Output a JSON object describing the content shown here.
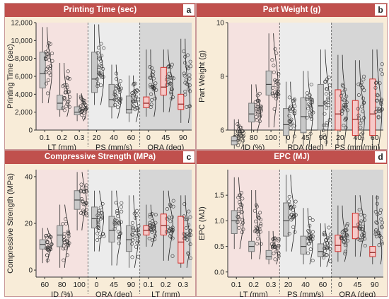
{
  "chart_data": [
    {
      "type": "box",
      "letter": "a",
      "title": "Printing Time (sec)",
      "ylabel": "Printing Time (sec)",
      "ylim": [
        0,
        12000
      ],
      "yticks": [
        0,
        2000,
        4000,
        6000,
        8000,
        10000,
        12000
      ],
      "ytick_labels": [
        "0",
        "2,000",
        "4,000",
        "6,000",
        "8,000",
        "10,000",
        "12,000"
      ],
      "groups": [
        {
          "xlabel": "LT (mm)",
          "shade": "#f5e2e0",
          "categories": [
            "0.1",
            "0.2",
            "0.3"
          ],
          "boxes": [
            {
              "q1": 4700,
              "median": 6300,
              "q3": 8700,
              "low": 3000,
              "high": 11500,
              "color": "gray"
            },
            {
              "q1": 2300,
              "median": 3000,
              "q3": 3900,
              "low": 1500,
              "high": 7500,
              "color": "gray"
            },
            {
              "q1": 1700,
              "median": 2000,
              "q3": 2600,
              "low": 1000,
              "high": 4100,
              "color": "gray"
            }
          ]
        },
        {
          "xlabel": "PS (mm/s)",
          "shade": "#ececec",
          "categories": [
            "20",
            "40",
            "60"
          ],
          "boxes": [
            {
              "q1": 4200,
              "median": 5700,
              "q3": 8700,
              "low": 2800,
              "high": 11800,
              "color": "gray"
            },
            {
              "q1": 2600,
              "median": 3400,
              "q3": 5100,
              "low": 1300,
              "high": 7300,
              "color": "gray"
            },
            {
              "q1": 1900,
              "median": 2300,
              "q3": 3800,
              "low": 900,
              "high": 6100,
              "color": "gray"
            }
          ]
        },
        {
          "xlabel": "ORA (deg)",
          "shade": "#d6d6d6",
          "categories": [
            "0",
            "45",
            "90"
          ],
          "boxes": [
            {
              "q1": 2500,
              "median": 3000,
              "q3": 3700,
              "low": 1500,
              "high": 9000,
              "color": "red"
            },
            {
              "q1": 3900,
              "median": 4800,
              "q3": 7000,
              "low": 2000,
              "high": 9000,
              "color": "red"
            },
            {
              "q1": 2300,
              "median": 2900,
              "q3": 4000,
              "low": 800,
              "high": 10200,
              "color": "red"
            }
          ]
        }
      ]
    },
    {
      "type": "box",
      "letter": "b",
      "title": "Part Weight (g)",
      "ylabel": "Part Weight (g)",
      "ylim": [
        6,
        10
      ],
      "yticks": [
        6,
        8,
        10
      ],
      "ytick_labels": [
        "6",
        "8",
        "10"
      ],
      "groups": [
        {
          "xlabel": "ID (%)",
          "shade": "#f5e2e0",
          "categories": [
            "60",
            "80",
            "100"
          ],
          "boxes": [
            {
              "q1": 5.45,
              "median": 5.6,
              "q3": 5.75,
              "low": 5.3,
              "high": 6.4,
              "color": "gray"
            },
            {
              "q1": 6.3,
              "median": 6.6,
              "q3": 7.0,
              "low": 5.9,
              "high": 7.7,
              "color": "gray"
            },
            {
              "q1": 7.3,
              "median": 7.7,
              "q3": 8.2,
              "low": 6.1,
              "high": 9.6,
              "color": "gray"
            }
          ]
        },
        {
          "xlabel": "RDA (deg)",
          "shade": "#ececec",
          "categories": [
            "0",
            "45",
            "90"
          ],
          "boxes": [
            {
              "q1": 5.8,
              "median": 6.2,
              "q3": 6.8,
              "low": 5.5,
              "high": 7.8,
              "color": "gray"
            },
            {
              "q1": 5.9,
              "median": 6.5,
              "q3": 7.2,
              "low": 5.4,
              "high": 8.2,
              "color": "gray"
            },
            {
              "q1": 6.0,
              "median": 6.9,
              "q3": 7.7,
              "low": 5.4,
              "high": 9.0,
              "color": "gray"
            }
          ]
        },
        {
          "xlabel": "PS (mm/min)",
          "shade": "#d6d6d6",
          "categories": [
            "20",
            "40",
            "60"
          ],
          "boxes": [
            {
              "q1": 6.0,
              "median": 6.6,
              "q3": 7.5,
              "low": 5.4,
              "high": 8.8,
              "color": "red"
            },
            {
              "q1": 5.8,
              "median": 6.4,
              "q3": 7.1,
              "low": 5.3,
              "high": 8.6,
              "color": "red"
            },
            {
              "q1": 5.8,
              "median": 6.6,
              "q3": 7.9,
              "low": 5.3,
              "high": 9.0,
              "color": "red"
            }
          ]
        }
      ]
    },
    {
      "type": "box",
      "letter": "c",
      "title": "Compressive Strength (MPa)",
      "ylabel": "Compressive Strength (MPa)",
      "ylim": [
        -3,
        43
      ],
      "yticks": [
        0,
        20,
        40
      ],
      "ytick_labels": [
        "0",
        "20",
        "40"
      ],
      "groups": [
        {
          "xlabel": "ID (%)",
          "shade": "#f5e2e0",
          "categories": [
            "60",
            "80",
            "100"
          ],
          "boxes": [
            {
              "q1": 9,
              "median": 11,
              "q3": 13,
              "low": 3,
              "high": 18,
              "color": "gray"
            },
            {
              "q1": 10,
              "median": 15,
              "q3": 19,
              "low": 1,
              "high": 28,
              "color": "gray"
            },
            {
              "q1": 26,
              "median": 30,
              "q3": 34,
              "low": 17,
              "high": 42,
              "color": "gray"
            }
          ]
        },
        {
          "xlabel": "ORA (deg)",
          "shade": "#ececec",
          "categories": [
            "0",
            "45",
            "90"
          ],
          "boxes": [
            {
              "q1": 18,
              "median": 22,
              "q3": 27,
              "low": 8,
              "high": 34,
              "color": "gray"
            },
            {
              "q1": 12,
              "median": 17,
              "q3": 23,
              "low": 2,
              "high": 34,
              "color": "gray"
            },
            {
              "q1": 8,
              "median": 13,
              "q3": 19,
              "low": 1,
              "high": 32,
              "color": "gray"
            }
          ]
        },
        {
          "xlabel": "LT (mm)",
          "shade": "#d6d6d6",
          "categories": [
            "0.1",
            "0.2",
            "0.3"
          ],
          "boxes": [
            {
              "q1": 15,
              "median": 17,
              "q3": 19,
              "low": 10,
              "high": 28,
              "color": "red"
            },
            {
              "q1": 15,
              "median": 19,
              "q3": 24,
              "low": 4,
              "high": 34,
              "color": "red"
            },
            {
              "q1": 3,
              "median": 12,
              "q3": 23,
              "low": 1,
              "high": 32,
              "color": "red"
            }
          ]
        }
      ]
    },
    {
      "type": "box",
      "letter": "d",
      "title": "EPC (MJ)",
      "ylabel": "EPC (MJ)",
      "ylim": [
        -0.1,
        2.0
      ],
      "yticks": [
        0.0,
        0.5,
        1.0,
        1.5
      ],
      "ytick_labels": [
        "0.0",
        "0.5",
        "1.0",
        "1.5"
      ],
      "groups": [
        {
          "xlabel": "LT (mm)",
          "shade": "#f5e2e0",
          "categories": [
            "0.1",
            "0.2",
            "0.3"
          ],
          "boxes": [
            {
              "q1": 0.75,
              "median": 1.0,
              "q3": 1.2,
              "low": 0.45,
              "high": 1.85,
              "color": "gray"
            },
            {
              "q1": 0.4,
              "median": 0.5,
              "q3": 0.6,
              "low": 0.25,
              "high": 1.6,
              "color": "gray"
            },
            {
              "q1": 0.25,
              "median": 0.3,
              "q3": 0.42,
              "low": 0.15,
              "high": 0.8,
              "color": "gray"
            }
          ]
        },
        {
          "xlabel": "PS (mm/s)",
          "shade": "#ececec",
          "categories": [
            "20",
            "40",
            "60"
          ],
          "boxes": [
            {
              "q1": 0.7,
              "median": 1.0,
              "q3": 1.35,
              "low": 0.4,
              "high": 1.9,
              "color": "gray"
            },
            {
              "q1": 0.35,
              "median": 0.5,
              "q3": 0.7,
              "low": 0.15,
              "high": 1.25,
              "color": "gray"
            },
            {
              "q1": 0.3,
              "median": 0.4,
              "q3": 0.55,
              "low": 0.1,
              "high": 0.95,
              "color": "gray"
            }
          ]
        },
        {
          "xlabel": "ORA (deg)",
          "shade": "#d6d6d6",
          "categories": [
            "0",
            "45",
            "90"
          ],
          "boxes": [
            {
              "q1": 0.4,
              "median": 0.52,
              "q3": 0.72,
              "low": 0.2,
              "high": 1.3,
              "color": "red"
            },
            {
              "q1": 0.65,
              "median": 0.88,
              "q3": 1.15,
              "low": 0.3,
              "high": 1.5,
              "color": "red"
            },
            {
              "q1": 0.3,
              "median": 0.38,
              "q3": 0.5,
              "low": 0.15,
              "high": 1.5,
              "color": "red"
            }
          ]
        }
      ]
    }
  ]
}
